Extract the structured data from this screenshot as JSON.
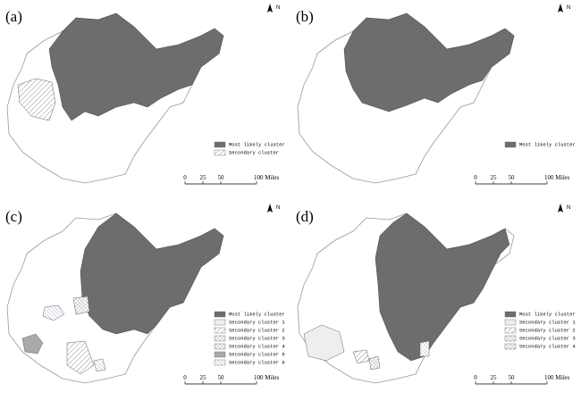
{
  "panels": [
    {
      "label": "(a)",
      "north": "N",
      "legend": [
        "Most likely cluster",
        "Secondary cluster"
      ],
      "scale": [
        "0",
        "25",
        "50",
        "100 Miles"
      ]
    },
    {
      "label": "(b)",
      "north": "N",
      "legend": [
        "Most likely cluster"
      ],
      "scale": [
        "0",
        "25",
        "50",
        "100 Miles"
      ]
    },
    {
      "label": "(c)",
      "north": "N",
      "legend": [
        "Most likely cluster",
        "Secondary cluster 1",
        "Secondary cluster 2",
        "Secondary cluster 3",
        "Secondary cluster 4",
        "Secondary cluster 5",
        "Secondary cluster 6"
      ],
      "scale": [
        "0",
        "25",
        "50",
        "100 Miles"
      ]
    },
    {
      "label": "(d)",
      "north": "N",
      "legend": [
        "Most likely cluster",
        "Secondary cluster 1",
        "Secondary cluster 2",
        "Secondary cluster 3",
        "Secondary cluster 4"
      ],
      "scale": [
        "0",
        "25",
        "50",
        "100 Miles"
      ]
    }
  ]
}
